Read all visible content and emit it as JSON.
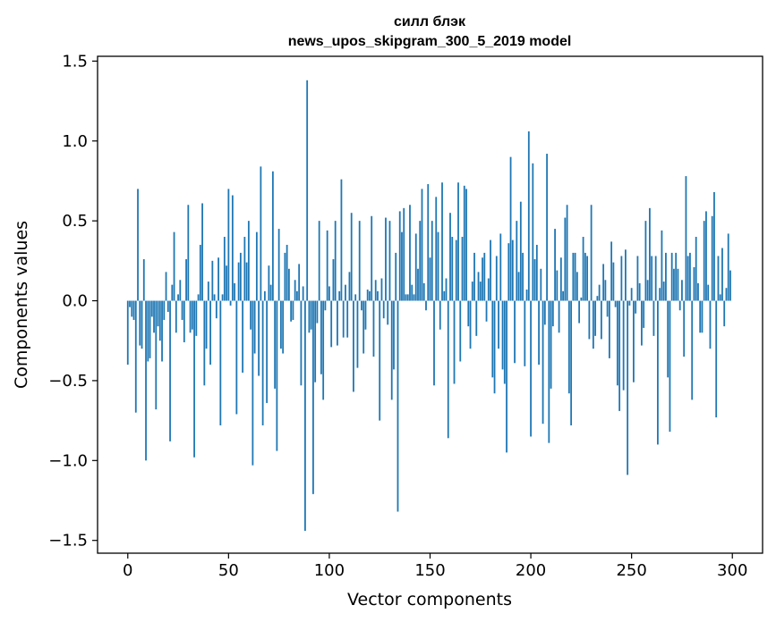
{
  "chart_data": {
    "type": "bar",
    "title": [
      "силл блэк",
      "news_upos_skipgram_300_5_2019 model"
    ],
    "xlabel": "Vector components",
    "ylabel": "Components values",
    "xlim": [
      -15,
      315
    ],
    "ylim": [
      -1.58,
      1.53
    ],
    "xticks": [
      0,
      50,
      100,
      150,
      200,
      250,
      300
    ],
    "yticks": [
      -1.5,
      -1.0,
      -0.5,
      0.0,
      0.5,
      1.0,
      1.5
    ],
    "xtick_labels": [
      "0",
      "50",
      "100",
      "150",
      "200",
      "250",
      "300"
    ],
    "ytick_labels": [
      "−1.5",
      "−1.0",
      "−0.5",
      "0.0",
      "0.5",
      "1.0",
      "1.5"
    ],
    "bar_color": "#1f77b4",
    "grid": false,
    "values": [
      -0.4,
      -0.04,
      -0.1,
      -0.12,
      -0.7,
      0.7,
      -0.28,
      -0.3,
      0.26,
      -1.0,
      -0.38,
      -0.36,
      -0.1,
      -0.2,
      -0.68,
      -0.16,
      -0.25,
      -0.38,
      -0.12,
      0.18,
      -0.07,
      -0.88,
      0.1,
      0.43,
      -0.2,
      0.04,
      0.13,
      -0.12,
      -0.26,
      0.26,
      0.6,
      -0.2,
      -0.18,
      -0.98,
      -0.22,
      0.04,
      0.35,
      0.61,
      -0.53,
      -0.3,
      0.12,
      -0.4,
      0.25,
      0.04,
      -0.11,
      0.27,
      -0.78,
      0.04,
      0.4,
      0.22,
      0.7,
      -0.03,
      0.66,
      0.11,
      -0.71,
      0.24,
      0.3,
      -0.45,
      0.4,
      0.24,
      0.5,
      -0.18,
      -1.03,
      -0.33,
      0.43,
      -0.47,
      0.84,
      -0.78,
      0.06,
      -0.64,
      0.22,
      0.1,
      0.81,
      -0.55,
      -0.94,
      0.45,
      -0.3,
      -0.33,
      0.3,
      0.35,
      0.2,
      -0.13,
      -0.12,
      0.13,
      0.06,
      0.23,
      -0.53,
      0.09,
      -1.44,
      1.38,
      -0.2,
      -0.18,
      -1.21,
      -0.51,
      -0.14,
      0.5,
      -0.46,
      -0.62,
      -0.06,
      0.44,
      0.09,
      -0.29,
      0.26,
      0.5,
      -0.28,
      0.06,
      0.76,
      -0.23,
      0.1,
      -0.23,
      0.18,
      0.55,
      -0.57,
      0.04,
      -0.42,
      0.5,
      -0.06,
      -0.33,
      -0.18,
      0.07,
      0.06,
      0.53,
      -0.35,
      0.13,
      0.06,
      -0.75,
      0.14,
      -0.11,
      0.52,
      -0.15,
      0.5,
      -0.62,
      -0.43,
      0.3,
      -1.32,
      0.56,
      0.43,
      0.58,
      0.04,
      0.04,
      0.6,
      0.1,
      0.04,
      0.42,
      0.2,
      0.5,
      0.7,
      0.11,
      -0.06,
      0.73,
      0.27,
      0.5,
      -0.53,
      0.65,
      0.43,
      -0.18,
      0.74,
      0.06,
      0.14,
      -0.86,
      0.55,
      0.4,
      -0.52,
      0.38,
      0.74,
      -0.38,
      0.4,
      0.72,
      0.7,
      -0.16,
      -0.3,
      0.12,
      0.3,
      -0.22,
      0.18,
      0.12,
      0.27,
      0.3,
      -0.13,
      0.14,
      0.38,
      -0.48,
      -0.58,
      0.28,
      -0.3,
      0.42,
      -0.43,
      -0.52,
      -0.95,
      0.36,
      0.9,
      0.38,
      -0.39,
      0.5,
      0.18,
      0.62,
      0.3,
      -0.41,
      0.07,
      1.06,
      -0.85,
      0.86,
      0.26,
      0.35,
      -0.4,
      0.2,
      -0.77,
      -0.15,
      0.92,
      -0.89,
      -0.55,
      -0.16,
      0.45,
      0.19,
      -0.2,
      0.27,
      0.06,
      0.52,
      0.6,
      -0.58,
      -0.78,
      0.3,
      0.3,
      0.18,
      -0.14,
      0.02,
      0.4,
      0.3,
      0.28,
      -0.24,
      0.6,
      -0.3,
      -0.22,
      0.03,
      0.1,
      -0.24,
      0.23,
      0.13,
      -0.1,
      -0.36,
      0.37,
      0.24,
      -0.04,
      -0.53,
      -0.69,
      0.28,
      -0.56,
      0.32,
      -1.09,
      -0.03,
      0.08,
      -0.51,
      -0.08,
      0.28,
      0.11,
      -0.28,
      -0.17,
      0.5,
      0.13,
      0.58,
      0.28,
      -0.22,
      0.28,
      -0.9,
      0.08,
      0.44,
      0.12,
      0.3,
      -0.48,
      -0.82,
      0.3,
      0.2,
      0.3,
      0.2,
      -0.06,
      0.13,
      -0.35,
      0.78,
      0.28,
      0.3,
      -0.62,
      0.21,
      0.4,
      0.11,
      -0.2,
      -0.2,
      0.5,
      0.56,
      0.1,
      -0.3,
      0.53,
      0.68,
      -0.73,
      0.28,
      0.04,
      0.33,
      -0.16,
      0.08,
      0.42,
      0.19
    ]
  }
}
